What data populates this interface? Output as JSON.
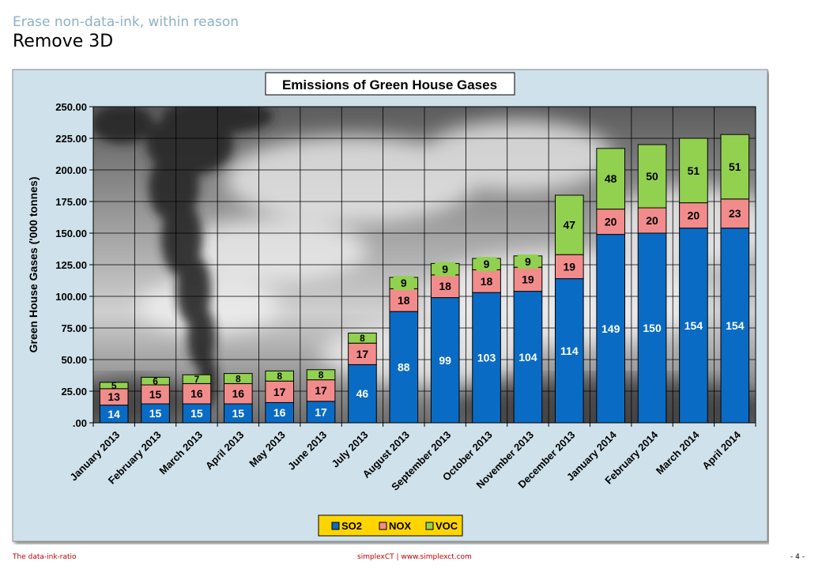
{
  "slide": {
    "subtitle": "Erase non-data-ink, within reason",
    "title": "Remove 3D"
  },
  "footer": {
    "left": "The data-ink-ratio",
    "center": "simplexCT  |  www.simplexct.com",
    "right": "- 4 -"
  },
  "colors": {
    "chart_area_bg": "#cfe1ea",
    "so2": "#0a6bc4",
    "nox": "#f28c8c",
    "voc": "#92d050",
    "legend_bg": "#ffd500"
  },
  "chart_data": {
    "type": "bar",
    "stacked": true,
    "title": "Emissions of Green House Gases",
    "ylabel": "Green House Gases ('000 tonnes)",
    "xlabel": "",
    "ylim": [
      0,
      250
    ],
    "yticks": [
      0,
      25,
      50,
      75,
      100,
      125,
      150,
      175,
      200,
      225,
      250
    ],
    "ytick_labels": [
      ".00",
      "25.00",
      "50.00",
      "75.00",
      "100.00",
      "125.00",
      "150.00",
      "175.00",
      "200.00",
      "225.00",
      "250.00"
    ],
    "grid": true,
    "legend_position": "bottom",
    "background_image": "smokestack-clouds-photo",
    "categories": [
      "January 2013",
      "February 2013",
      "March 2013",
      "April 2013",
      "May 2013",
      "June 2013",
      "July 2013",
      "August 2013",
      "September 2013",
      "October 2013",
      "November 2013",
      "December 2013",
      "January 2014",
      "February 2014",
      "March 2014",
      "April 2014"
    ],
    "series": [
      {
        "name": "SO2",
        "color": "#0a6bc4",
        "values": [
          14,
          15,
          15,
          15,
          16,
          17,
          46,
          88,
          99,
          103,
          104,
          114,
          149,
          150,
          154,
          154
        ]
      },
      {
        "name": "NOX",
        "color": "#f28c8c",
        "values": [
          13,
          15,
          16,
          16,
          17,
          17,
          17,
          18,
          18,
          18,
          19,
          19,
          20,
          20,
          20,
          23
        ]
      },
      {
        "name": "VOC",
        "color": "#92d050",
        "values": [
          5,
          6,
          7,
          8,
          8,
          8,
          8,
          9,
          9,
          9,
          9,
          47,
          48,
          50,
          51,
          51
        ]
      }
    ]
  }
}
